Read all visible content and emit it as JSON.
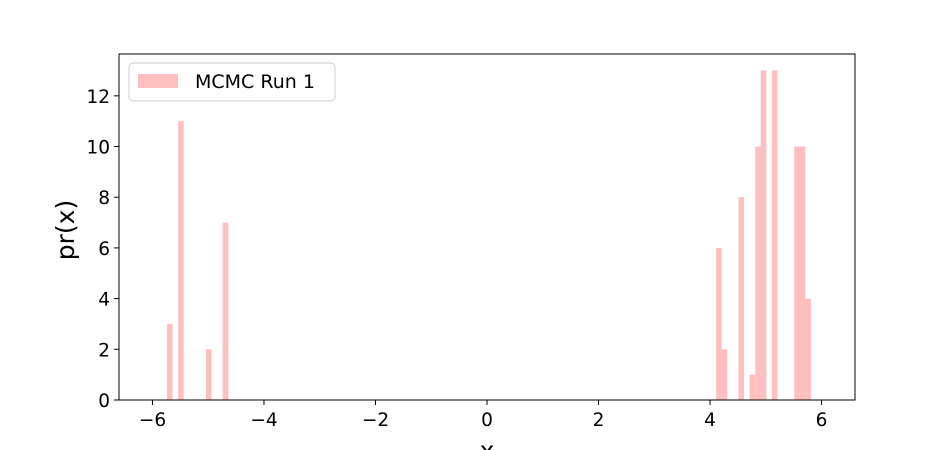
{
  "chart_data": {
    "type": "bar",
    "title": "",
    "xlabel": "x",
    "ylabel": "pr(x)",
    "xlim": [
      -6.6,
      6.6
    ],
    "ylim": [
      0,
      13.65
    ],
    "xticks": [
      -6,
      -4,
      -2,
      0,
      2,
      4,
      6
    ],
    "xtick_labels": [
      "−6",
      "−4",
      "−2",
      "0",
      "2",
      "4",
      "6"
    ],
    "yticks": [
      0,
      2,
      4,
      6,
      8,
      10,
      12
    ],
    "ytick_labels": [
      "0",
      "2",
      "4",
      "6",
      "8",
      "10",
      "12"
    ],
    "grid": false,
    "legend_position": "top-left",
    "bar_color": "#ffbfbf",
    "series": [
      {
        "name": "MCMC Run 1",
        "bar_width": 0.1,
        "x": [
          -5.69,
          -5.49,
          -4.99,
          -4.69,
          4.16,
          4.26,
          4.56,
          4.76,
          4.86,
          4.96,
          5.16,
          5.56,
          5.66,
          5.76
        ],
        "values": [
          3,
          11,
          2,
          7,
          6,
          2,
          8,
          1,
          10,
          13,
          13,
          10,
          10,
          4
        ]
      }
    ]
  }
}
